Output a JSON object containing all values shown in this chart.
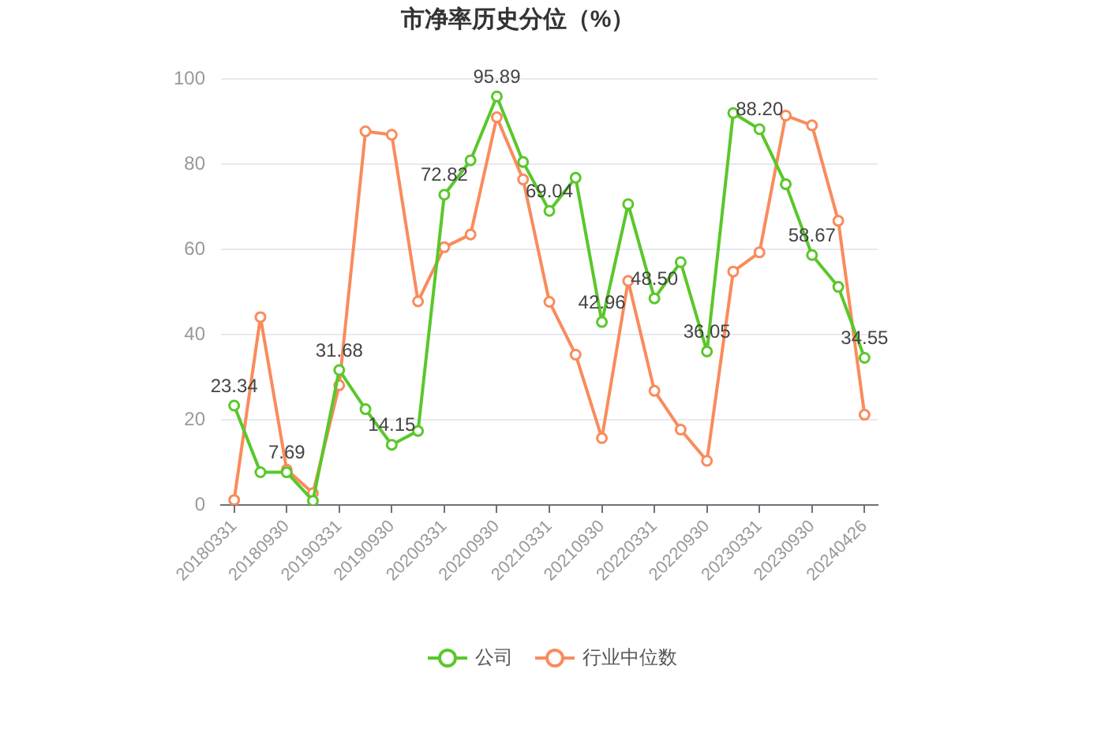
{
  "chart_data": {
    "type": "line",
    "title": "市净率历史分位（%）",
    "categories": [
      "20180331",
      null,
      "20180930",
      null,
      "20190331",
      null,
      "20190930",
      null,
      "20200331",
      null,
      "20200930",
      null,
      "20210331",
      null,
      "20210930",
      null,
      "20220331",
      null,
      "20220930",
      null,
      "20230331",
      null,
      "20230930",
      null,
      "20240426"
    ],
    "series": [
      {
        "name": "公司",
        "color": "#5ac72b",
        "values": [
          23.34,
          7.7,
          7.69,
          1.0,
          31.68,
          22.5,
          14.15,
          17.4,
          72.82,
          80.9,
          95.89,
          80.5,
          69.04,
          76.8,
          42.96,
          70.6,
          48.5,
          57.0,
          36.05,
          92.0,
          88.2,
          75.3,
          58.67,
          51.2,
          34.55
        ],
        "value_labels": [
          "23.34",
          null,
          "7.69",
          null,
          "31.68",
          null,
          "14.15",
          null,
          "72.82",
          null,
          "95.89",
          null,
          "69.04",
          null,
          "42.96",
          null,
          "48.50",
          null,
          "36.05",
          null,
          "88.20",
          null,
          "58.67",
          null,
          "34.55"
        ]
      },
      {
        "name": "行业中位数",
        "color": "#f98b5c",
        "values": [
          1.2,
          44.1,
          8.3,
          2.8,
          28.1,
          87.7,
          86.9,
          47.8,
          60.5,
          63.5,
          91.0,
          76.4,
          47.7,
          35.3,
          15.7,
          52.6,
          26.8,
          17.7,
          10.4,
          54.8,
          59.3,
          91.4,
          89.1,
          66.7,
          21.2
        ]
      }
    ],
    "ylim": [
      0,
      100
    ],
    "yticks": [
      0,
      20,
      40,
      60,
      80,
      100
    ],
    "grid": "y",
    "legend": "bottom",
    "marker": "circle"
  }
}
